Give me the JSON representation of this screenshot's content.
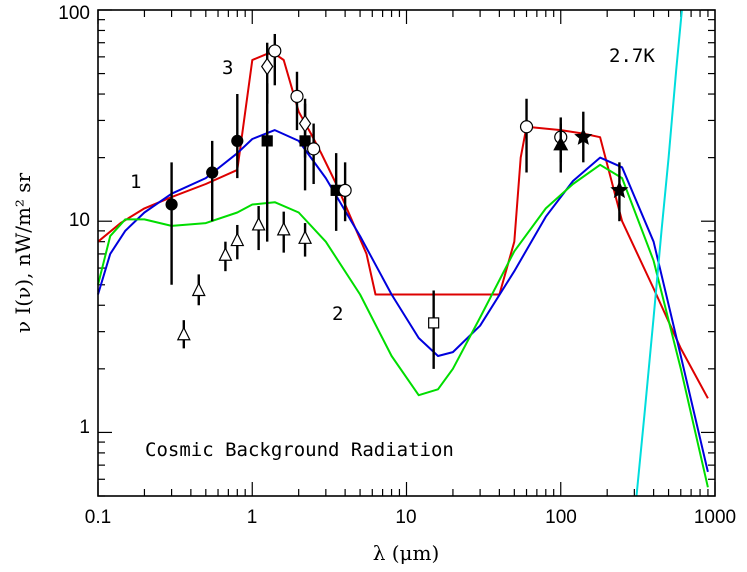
{
  "chart_data": {
    "type": "line",
    "title": "Cosmic Background Radiation",
    "xlabel": "λ (μm)",
    "ylabel": "ν I(ν), nW/m² sr",
    "xscale": "log",
    "yscale": "log",
    "xlim": [
      0.1,
      1000
    ],
    "ylim": [
      0.5,
      100
    ],
    "x_ticks": [
      "0.1",
      "1",
      "10",
      "100",
      "1000"
    ],
    "y_ticks": [
      "1",
      "10",
      "100"
    ],
    "curve_labels": [
      "1",
      "2",
      "3",
      "2.7K"
    ],
    "colors": {
      "model_1": "#0000dd",
      "model_2": "#00dd00",
      "model_3": "#dd0000",
      "cmb": "#00dddd"
    },
    "series": [
      {
        "name": "3",
        "color": "#dd0000",
        "x": [
          0.1,
          0.14,
          0.2,
          0.3,
          0.5,
          0.8,
          1.0,
          1.25,
          1.4,
          1.6,
          2.0,
          2.4,
          2.8,
          3.5,
          5.5,
          6.3,
          10,
          20,
          40,
          50,
          55,
          60,
          100,
          140,
          180,
          250,
          400,
          600,
          900
        ],
        "y": [
          8.0,
          9.8,
          11.5,
          13.0,
          15.0,
          17.5,
          58.0,
          62.0,
          62.0,
          58.0,
          33.0,
          26.0,
          21.0,
          15.0,
          7.0,
          4.5,
          4.5,
          4.5,
          4.5,
          8.0,
          20.0,
          28.0,
          27.0,
          26.0,
          25.0,
          10.0,
          4.8,
          2.5,
          1.45
        ]
      },
      {
        "name": "1",
        "color": "#0000dd",
        "x": [
          0.1,
          0.12,
          0.15,
          0.2,
          0.3,
          0.5,
          0.8,
          1.0,
          1.4,
          2.0,
          3.0,
          5.0,
          8.0,
          12,
          16,
          20,
          30,
          50,
          80,
          120,
          180,
          250,
          400,
          600,
          900
        ],
        "y": [
          4.5,
          7.0,
          9.0,
          11.0,
          13.5,
          16.0,
          21.0,
          24.5,
          27.0,
          24.0,
          16.0,
          8.5,
          4.5,
          2.8,
          2.3,
          2.4,
          3.2,
          5.8,
          10.5,
          15.5,
          20.0,
          18.0,
          8.0,
          2.3,
          0.65
        ]
      },
      {
        "name": "2",
        "color": "#00dd00",
        "x": [
          0.1,
          0.12,
          0.15,
          0.2,
          0.3,
          0.5,
          0.8,
          1.0,
          1.4,
          2.0,
          3.0,
          5.0,
          8.0,
          12,
          16,
          20,
          30,
          50,
          80,
          120,
          180,
          250,
          400,
          600,
          900
        ],
        "y": [
          5.0,
          8.5,
          10.2,
          10.2,
          9.5,
          9.8,
          11.0,
          12.0,
          12.3,
          11.0,
          8.0,
          4.5,
          2.3,
          1.5,
          1.6,
          2.0,
          3.5,
          7.2,
          11.5,
          15.0,
          18.5,
          16.0,
          6.5,
          2.0,
          0.55
        ]
      },
      {
        "name": "2.7K",
        "color": "#00dddd",
        "x": [
          310,
          350,
          400,
          450,
          500,
          560,
          610
        ],
        "y": [
          0.5,
          1.25,
          3.5,
          9.0,
          20.0,
          52.0,
          100.0
        ]
      }
    ],
    "points": [
      {
        "marker": "circle-filled",
        "x": 0.3,
        "y": 12,
        "ylo": 5,
        "yhi": 19
      },
      {
        "marker": "circle-filled",
        "x": 0.55,
        "y": 17,
        "ylo": 10,
        "yhi": 24
      },
      {
        "marker": "circle-filled",
        "x": 0.8,
        "y": 24,
        "ylo": 16,
        "yhi": 40
      },
      {
        "marker": "square-filled",
        "x": 1.25,
        "y": 24,
        "ylo": 8,
        "yhi": 45
      },
      {
        "marker": "square-filled",
        "x": 2.2,
        "y": 24,
        "ylo": 14,
        "yhi": 38
      },
      {
        "marker": "square-filled",
        "x": 3.5,
        "y": 14,
        "ylo": 9,
        "yhi": 21
      },
      {
        "marker": "circle-open",
        "x": 1.4,
        "y": 64,
        "ylo": 44,
        "yhi": 77
      },
      {
        "marker": "circle-open",
        "x": 1.95,
        "y": 39,
        "ylo": 27,
        "yhi": 51
      },
      {
        "marker": "circle-open",
        "x": 2.5,
        "y": 22,
        "ylo": 15,
        "yhi": 29
      },
      {
        "marker": "circle-open",
        "x": 4.0,
        "y": 14,
        "ylo": 10,
        "yhi": 19
      },
      {
        "marker": "circle-open",
        "x": 60,
        "y": 28,
        "ylo": 17,
        "yhi": 38
      },
      {
        "marker": "circle-open",
        "x": 100,
        "y": 25,
        "ylo": 19,
        "yhi": 31
      },
      {
        "marker": "diamond-open",
        "x": 1.25,
        "y": 54,
        "ylo": 36,
        "yhi": 70
      },
      {
        "marker": "diamond-open",
        "x": 2.2,
        "y": 29,
        "ylo": 20,
        "yhi": 36
      },
      {
        "marker": "triangle-open",
        "x": 0.36,
        "y": 2.9,
        "ylo": 2.5,
        "yhi": 3.4
      },
      {
        "marker": "triangle-open",
        "x": 0.45,
        "y": 4.7,
        "ylo": 4.0,
        "yhi": 5.6
      },
      {
        "marker": "triangle-open",
        "x": 0.67,
        "y": 6.9,
        "ylo": 5.8,
        "yhi": 8.0
      },
      {
        "marker": "triangle-open",
        "x": 0.8,
        "y": 8.1,
        "ylo": 6.6,
        "yhi": 9.6
      },
      {
        "marker": "triangle-open",
        "x": 1.1,
        "y": 9.6,
        "ylo": 7.3,
        "yhi": 11.8
      },
      {
        "marker": "triangle-open",
        "x": 1.6,
        "y": 9.1,
        "ylo": 7.1,
        "yhi": 11.1
      },
      {
        "marker": "triangle-open",
        "x": 2.2,
        "y": 8.3,
        "ylo": 6.8,
        "yhi": 9.8
      },
      {
        "marker": "square-open",
        "x": 15,
        "y": 3.3,
        "ylo": 2.0,
        "yhi": 4.7
      },
      {
        "marker": "triangle-filled",
        "x": 100,
        "y": 23,
        "ylo": 17,
        "yhi": 29
      },
      {
        "marker": "star-filled",
        "x": 140,
        "y": 25,
        "ylo": 19,
        "yhi": 33
      },
      {
        "marker": "star-filled",
        "x": 240,
        "y": 14,
        "ylo": 10,
        "yhi": 19
      }
    ]
  }
}
